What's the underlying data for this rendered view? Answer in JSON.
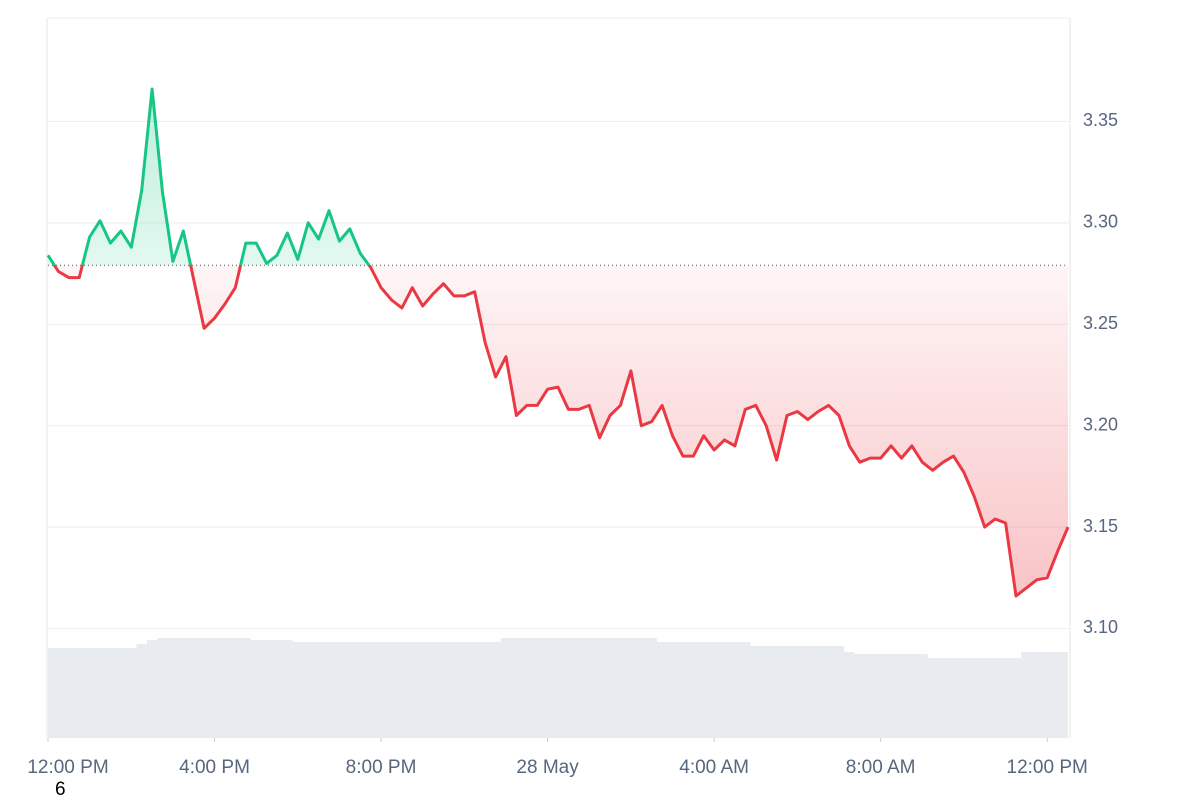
{
  "chart_data": {
    "type": "line",
    "x": [
      0,
      0.25,
      0.5,
      0.75,
      1,
      1.25,
      1.5,
      1.75,
      2,
      2.25,
      2.5,
      2.75,
      3,
      3.25,
      3.5,
      3.75,
      4,
      4.25,
      4.5,
      4.75,
      5,
      5.25,
      5.5,
      5.75,
      6,
      6.25,
      6.5,
      6.75,
      7,
      7.25,
      7.5,
      7.75,
      8,
      8.25,
      8.5,
      8.75,
      9,
      9.25,
      9.5,
      9.75,
      10,
      10.25,
      10.5,
      10.75,
      11,
      11.25,
      11.5,
      11.75,
      12,
      12.25,
      12.5,
      12.75,
      13,
      13.25,
      13.5,
      13.75,
      14,
      14.25,
      14.5,
      14.75,
      15,
      15.25,
      15.5,
      15.75,
      16,
      16.25,
      16.5,
      16.75,
      17,
      17.25,
      17.5,
      17.75,
      18,
      18.25,
      18.5,
      18.75,
      19,
      19.25,
      19.5,
      19.75,
      20,
      20.25,
      20.5,
      20.75,
      21,
      21.25,
      21.5,
      21.75,
      22,
      22.25,
      22.5,
      22.75,
      23,
      23.25,
      23.5,
      23.75,
      24,
      24.25,
      24.5
    ],
    "series": [
      {
        "values": [
          3.284,
          3.276,
          3.273,
          3.273,
          3.293,
          3.301,
          3.29,
          3.296,
          3.288,
          3.316,
          3.366,
          3.315,
          3.281,
          3.296,
          3.272,
          3.248,
          3.253,
          3.26,
          3.268,
          3.29,
          3.29,
          3.28,
          3.284,
          3.295,
          3.282,
          3.3,
          3.292,
          3.306,
          3.291,
          3.297,
          3.285,
          3.278,
          3.268,
          3.262,
          3.258,
          3.268,
          3.259,
          3.265,
          3.27,
          3.264,
          3.264,
          3.266,
          3.241,
          3.224,
          3.234,
          3.205,
          3.21,
          3.21,
          3.218,
          3.219,
          3.208,
          3.208,
          3.21,
          3.194,
          3.205,
          3.21,
          3.227,
          3.2,
          3.202,
          3.21,
          3.195,
          3.185,
          3.185,
          3.195,
          3.188,
          3.193,
          3.19,
          3.208,
          3.21,
          3.2,
          3.183,
          3.205,
          3.207,
          3.203,
          3.207,
          3.21,
          3.205,
          3.19,
          3.182,
          3.184,
          3.184,
          3.19,
          3.184,
          3.19,
          3.182,
          3.178,
          3.182,
          3.185,
          3.177,
          3.165,
          3.15,
          3.154,
          3.152,
          3.116,
          3.12,
          3.124,
          3.125,
          3.138,
          3.15
        ],
        "color_up": "#16c784",
        "color_down": "#ea3943"
      },
      {
        "axis": "y2",
        "color": "#e8ebef",
        "values": [
          45,
          45,
          45,
          45,
          45,
          45,
          45,
          45,
          45,
          47,
          49,
          50,
          50,
          50,
          50,
          50,
          50,
          50,
          50,
          50,
          49,
          49,
          49,
          49,
          48,
          48,
          48,
          48,
          48,
          48,
          48,
          48,
          48,
          48,
          48,
          48,
          48,
          48,
          48,
          48,
          48,
          48,
          48,
          48,
          50,
          50,
          50,
          50,
          50,
          50,
          50,
          50,
          50,
          50,
          50,
          50,
          50,
          50,
          50,
          48,
          48,
          48,
          48,
          48,
          48,
          48,
          48,
          48,
          46,
          46,
          46,
          46,
          46,
          46,
          46,
          46,
          46,
          43,
          42,
          42,
          42,
          42,
          42,
          42,
          42,
          40,
          40,
          40,
          40,
          40,
          40,
          40,
          40,
          40,
          43,
          43,
          43,
          43,
          43
        ]
      }
    ],
    "baseline": 3.279,
    "xlim": [
      0,
      24.5
    ],
    "xticks": [
      {
        "value": 0,
        "label": "12:00 PM"
      },
      {
        "value": 4,
        "label": "4:00 PM"
      },
      {
        "value": 8,
        "label": "8:00 PM"
      },
      {
        "value": 12,
        "label": "28 May"
      },
      {
        "value": 16,
        "label": "4:00 AM"
      },
      {
        "value": 20,
        "label": "8:00 AM"
      },
      {
        "value": 24,
        "label": "12:00 PM"
      }
    ],
    "ylim": [
      3.046,
      3.401
    ],
    "yticks": [
      {
        "value": 3.1,
        "label": "3.10"
      },
      3.15,
      {
        "value": 3.2,
        "label": "3.20"
      },
      3.25,
      {
        "value": 3.3,
        "label": "3.30"
      },
      3.35
    ],
    "y2lim": [
      0,
      360
    ],
    "grid": true,
    "footnote": "6"
  }
}
